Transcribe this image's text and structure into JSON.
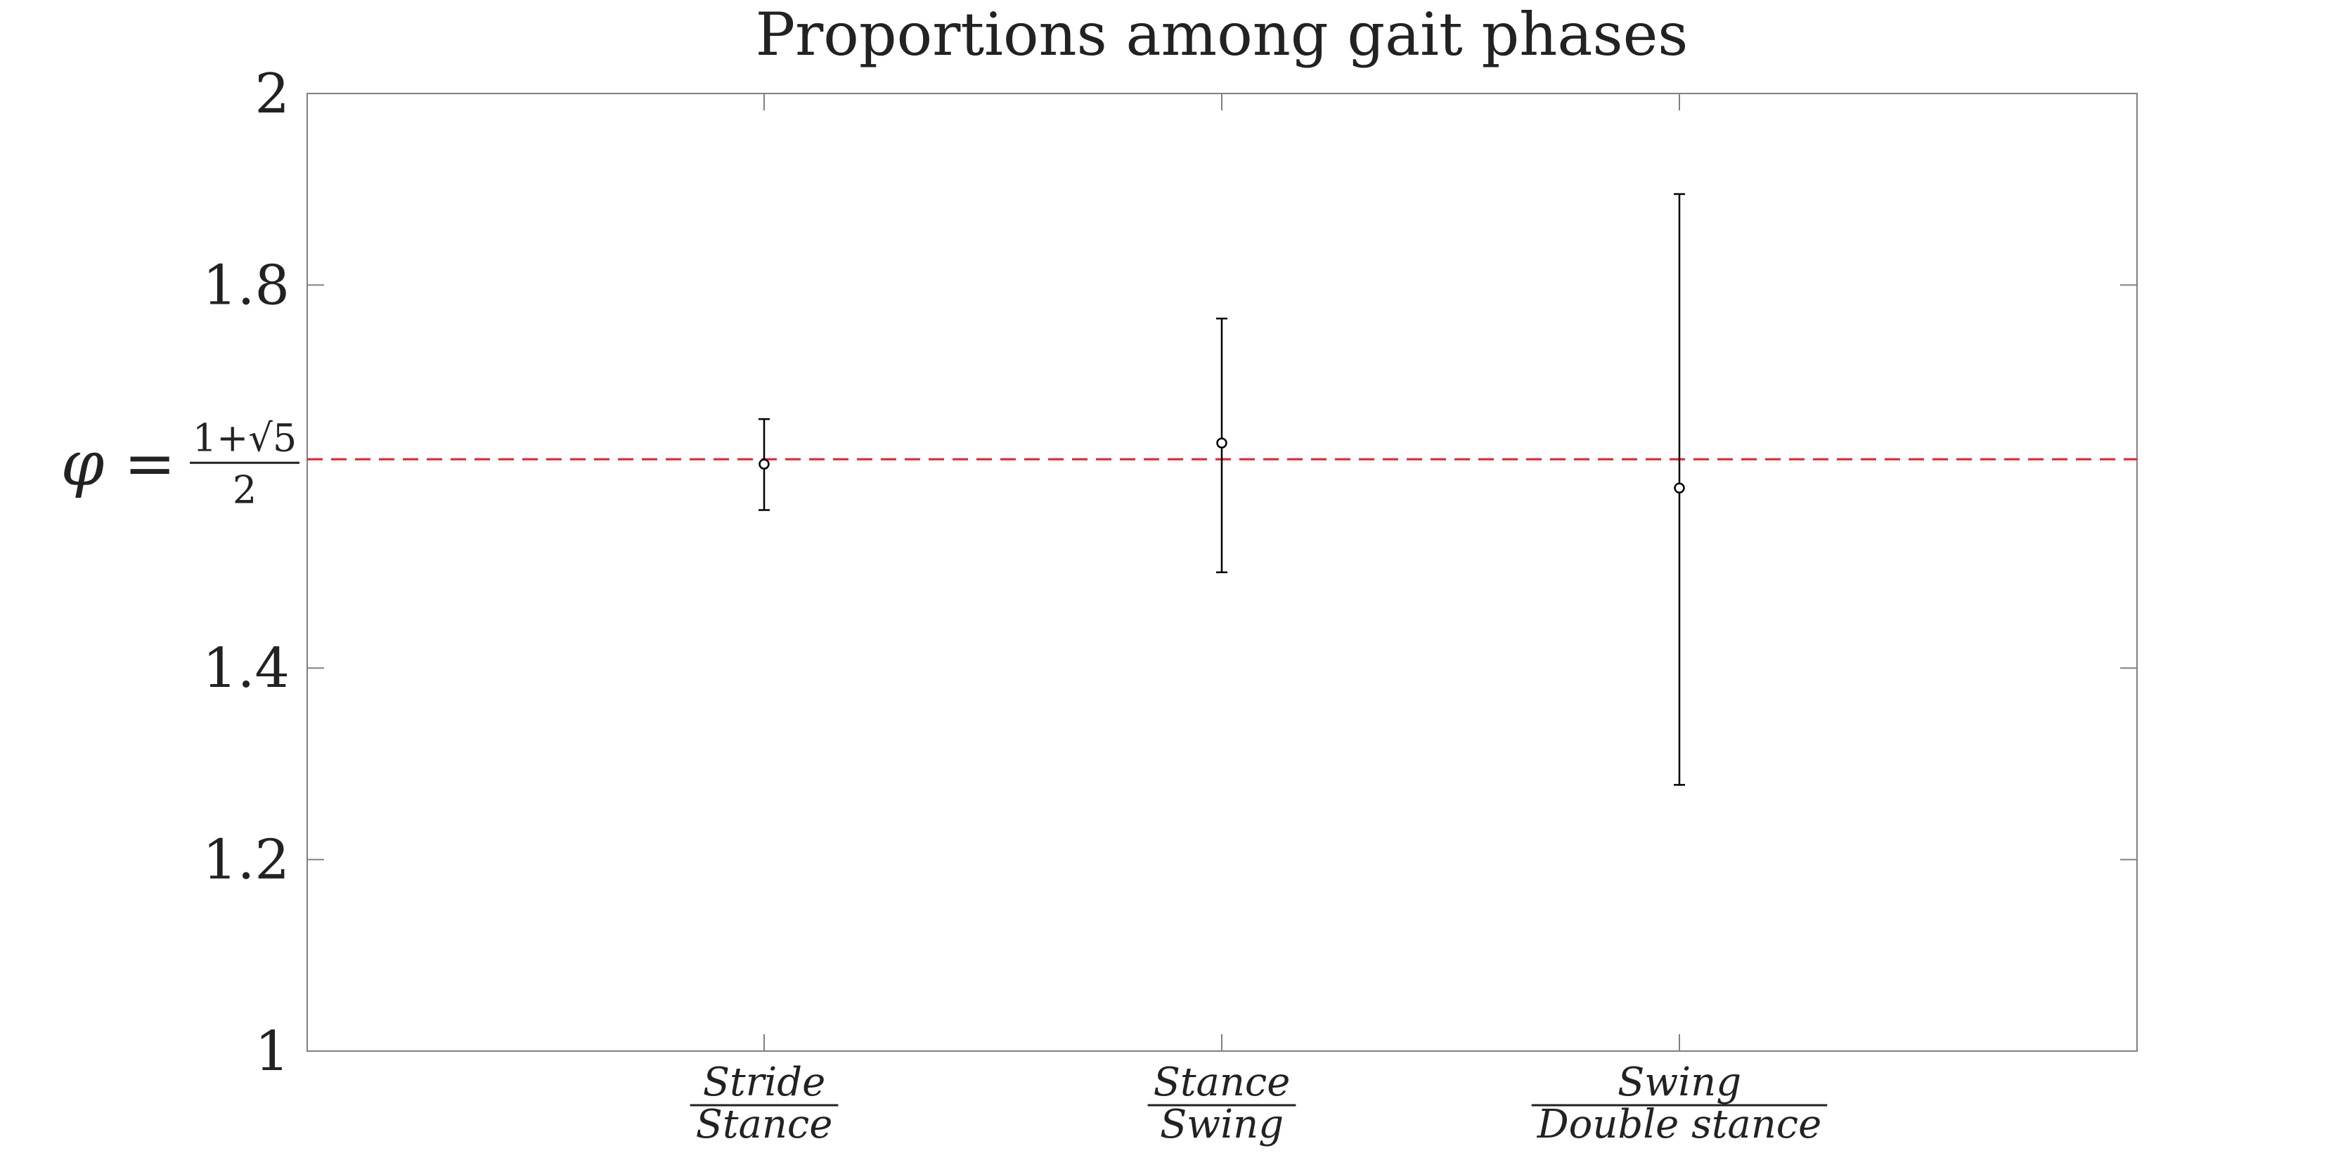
{
  "chart_data": {
    "type": "scatter",
    "title": "Proportions among gait phases",
    "xlabel": "",
    "ylabel": "",
    "ylim": [
      1,
      2
    ],
    "yticks": [
      1,
      1.2,
      1.4,
      1.8,
      2
    ],
    "ytick_labels": [
      "1",
      "1.2",
      "1.4",
      "1.8",
      "2"
    ],
    "categories": [
      {
        "numerator": "Stride",
        "denominator": "Stance"
      },
      {
        "numerator": "Stance",
        "denominator": "Swing"
      },
      {
        "numerator": "Swing",
        "denominator": "Double  stance"
      }
    ],
    "points": [
      {
        "mean": 1.613,
        "low": 1.565,
        "high": 1.66
      },
      {
        "mean": 1.635,
        "low": 1.5,
        "high": 1.765
      },
      {
        "mean": 1.588,
        "low": 1.278,
        "high": 1.895
      }
    ],
    "reference_line": {
      "value": 1.618,
      "label_lhs": "φ =",
      "label_num": "1+√5",
      "label_den": "2",
      "color": "#e8202a",
      "style": "dashed"
    },
    "grid": false,
    "colors": {
      "marker": "#000000",
      "axis": "#808080",
      "text": "#222222"
    }
  }
}
